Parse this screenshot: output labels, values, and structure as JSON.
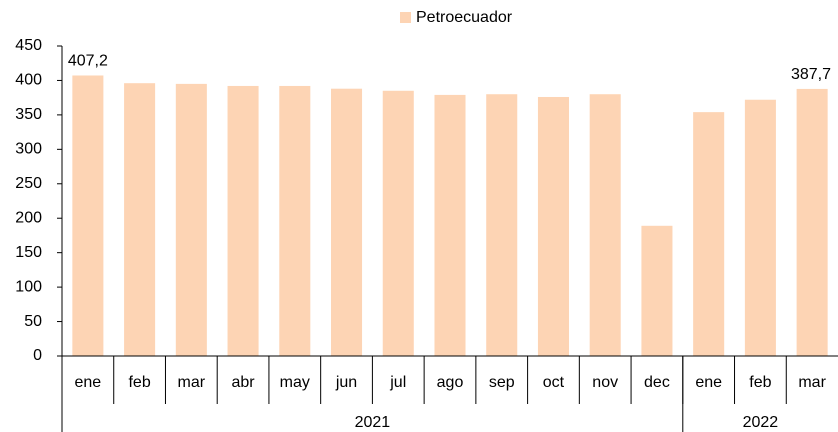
{
  "chart_data": {
    "type": "bar",
    "categories": [
      "ene",
      "feb",
      "mar",
      "abr",
      "may",
      "jun",
      "jul",
      "ago",
      "sep",
      "oct",
      "nov",
      "dec",
      "ene",
      "feb",
      "mar"
    ],
    "groups": [
      {
        "label": "2021",
        "span": 12
      },
      {
        "label": "2022",
        "span": 3
      }
    ],
    "series": [
      {
        "name": "Petroecuador",
        "color": "#fdd4b4",
        "values": [
          407.2,
          396,
          395,
          392,
          392,
          388,
          385,
          379,
          380,
          376,
          380,
          189,
          354,
          372,
          387.7
        ],
        "value_labels": [
          "407,2",
          null,
          null,
          null,
          null,
          null,
          null,
          null,
          null,
          null,
          null,
          null,
          null,
          null,
          "387,7"
        ]
      }
    ],
    "ylim": [
      0,
      450
    ],
    "yticks": [
      0,
      50,
      100,
      150,
      200,
      250,
      300,
      350,
      400,
      450
    ],
    "grid": false,
    "legend": "top"
  }
}
